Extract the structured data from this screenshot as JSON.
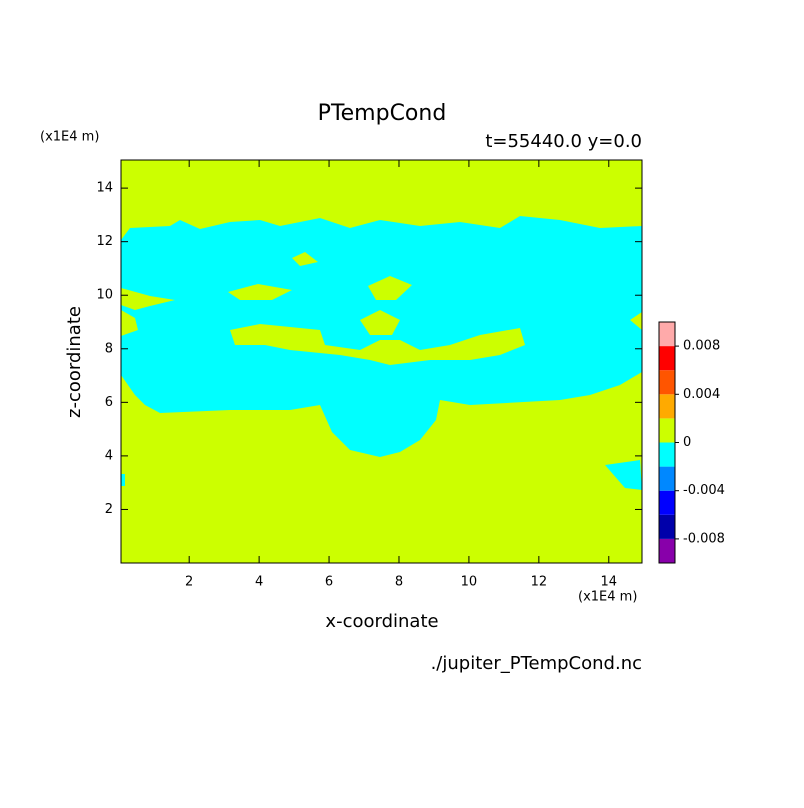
{
  "chart_data": {
    "type": "contour",
    "title": "PTempCond",
    "subtitle": "t=55440.0 y=0.0",
    "x_label": "x-coordinate",
    "y_label": "z-coordinate",
    "x_unit": "(x1E4 m)",
    "y_unit": "(x1E4 m)",
    "file": "./jupiter_PTempCond.nc",
    "xlim": [
      0.05,
      14.95
    ],
    "ylim": [
      0.0,
      15.05
    ],
    "xticks": [
      2,
      4,
      6,
      8,
      10,
      12,
      14
    ],
    "yticks": [
      2,
      4,
      6,
      8,
      10,
      12,
      14
    ],
    "colorbar": {
      "levels": [
        -0.01,
        -0.008,
        -0.006,
        -0.004,
        -0.002,
        0,
        0.002,
        0.004,
        0.006,
        0.008,
        0.01
      ],
      "colors": [
        "#8800aa",
        "#0000aa",
        "#0000ff",
        "#0088ff",
        "#00ffff",
        "#ccff00",
        "#ffaa00",
        "#ff5500",
        "#ff0000",
        "#ffaaaa"
      ],
      "ticks": [
        -0.008,
        -0.004,
        0,
        0.004,
        0.008
      ]
    }
  }
}
